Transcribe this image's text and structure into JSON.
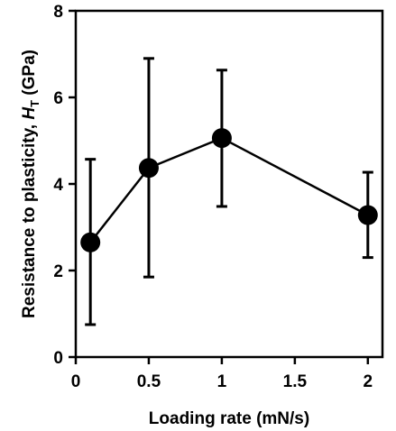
{
  "chart_data": {
    "type": "scatter",
    "title": "",
    "xlabel": "Loading rate (mN/s)",
    "ylabel": {
      "prefix": "Resistance to plasticity, ",
      "symbol": "H",
      "subscript": "T",
      "suffix": " (GPa)"
    },
    "xlim": [
      0,
      2.1
    ],
    "ylim": [
      0,
      8
    ],
    "xticks": [
      0,
      0.5,
      1,
      1.5,
      2
    ],
    "xtick_labels": [
      "0",
      "0.5",
      "1",
      "1.5",
      "2"
    ],
    "yticks": [
      0,
      2,
      4,
      6,
      8
    ],
    "ytick_labels": [
      "0",
      "2",
      "4",
      "6",
      "8"
    ],
    "grid": false,
    "legend": "none",
    "series": [
      {
        "color": "#000000",
        "marker": "circle",
        "line": true,
        "x": [
          0.1,
          0.5,
          1,
          2
        ],
        "y": [
          2.65,
          4.37,
          5.06,
          3.28
        ],
        "yerr_low": [
          0.75,
          1.85,
          3.48,
          2.3
        ],
        "yerr_high": [
          4.57,
          6.9,
          6.63,
          4.27
        ]
      }
    ]
  }
}
